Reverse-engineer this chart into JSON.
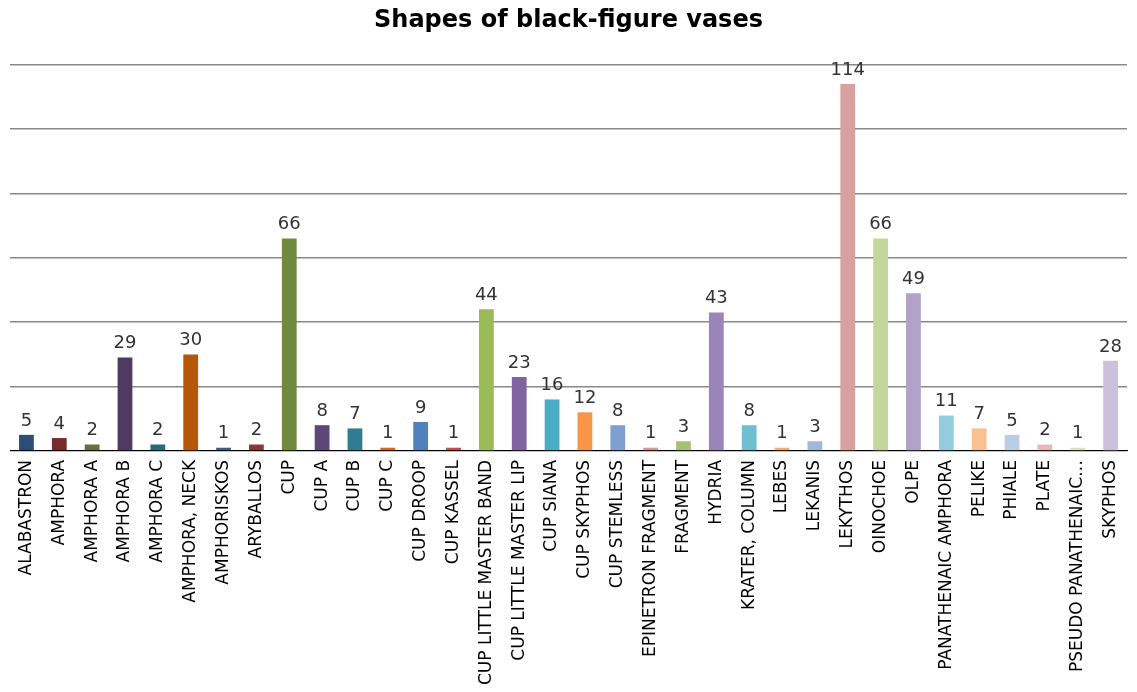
{
  "chart_data": {
    "type": "bar",
    "title": "Shapes of black-figure vases",
    "categories": [
      "ALABASTRON",
      "AMPHORA",
      "AMPHORA A",
      "AMPHORA B",
      "AMPHORA C",
      "AMPHORA, NECK",
      "AMPHORISKOS",
      "ARYBALLOS",
      "CUP",
      "CUP A",
      "CUP B",
      "CUP C",
      "CUP DROOP",
      "CUP KASSEL",
      "CUP LITTLE MASTER BAND",
      "CUP LITTLE MASTER LIP",
      "CUP SIANA",
      "CUP SKYPHOS",
      "CUP STEMLESS",
      "EPINETRON FRAGMENT",
      "FRAGMENT",
      "HYDRIA",
      "KRATER, COLUMN",
      "LEBES",
      "LEKANIS",
      "LEKYTHOS",
      "OINOCHOE",
      "OLPE",
      "PANATHENAIC AMPHORA",
      "PELIKE",
      "PHIALE",
      "PLATE",
      "PSEUDO PANATHENAIC…",
      "SKYPHOS"
    ],
    "values": [
      5,
      4,
      2,
      29,
      2,
      30,
      1,
      2,
      66,
      8,
      7,
      1,
      9,
      1,
      44,
      23,
      16,
      12,
      8,
      1,
      3,
      43,
      8,
      1,
      3,
      114,
      66,
      49,
      11,
      7,
      5,
      2,
      1,
      28
    ],
    "colors": [
      "#2c4d75",
      "#772c2a",
      "#5f7530",
      "#4d3b62",
      "#276a7c",
      "#b65708",
      "#3a5f8b",
      "#8c3836",
      "#71893f",
      "#5c4776",
      "#2f7d93",
      "#d46b0d",
      "#4f81bd",
      "#c0504d",
      "#9bbb59",
      "#8064a2",
      "#4bacc6",
      "#f79646",
      "#7f9fd0",
      "#d99694",
      "#a7c06f",
      "#9a85b8",
      "#6fbfd3",
      "#f9ac70",
      "#9fb8dc",
      "#d9a0a0",
      "#c3d69b",
      "#b3a2c7",
      "#93cddd",
      "#fac090",
      "#b9cde5",
      "#e6b9b8",
      "#d7e4bd",
      "#ccc1da"
    ],
    "ylim": [
      0,
      120
    ],
    "yticks": [
      {
        "value": 0,
        "label": null
      },
      {
        "value": 20,
        "label": null
      },
      {
        "value": 40,
        "label": null
      },
      {
        "value": 60,
        "label": null
      },
      {
        "value": 80,
        "label": null
      },
      {
        "value": 100,
        "label": null
      },
      {
        "value": 120,
        "label": null
      }
    ],
    "tick_labels": "x",
    "grid": "y",
    "legend": false,
    "data_labels": true
  }
}
